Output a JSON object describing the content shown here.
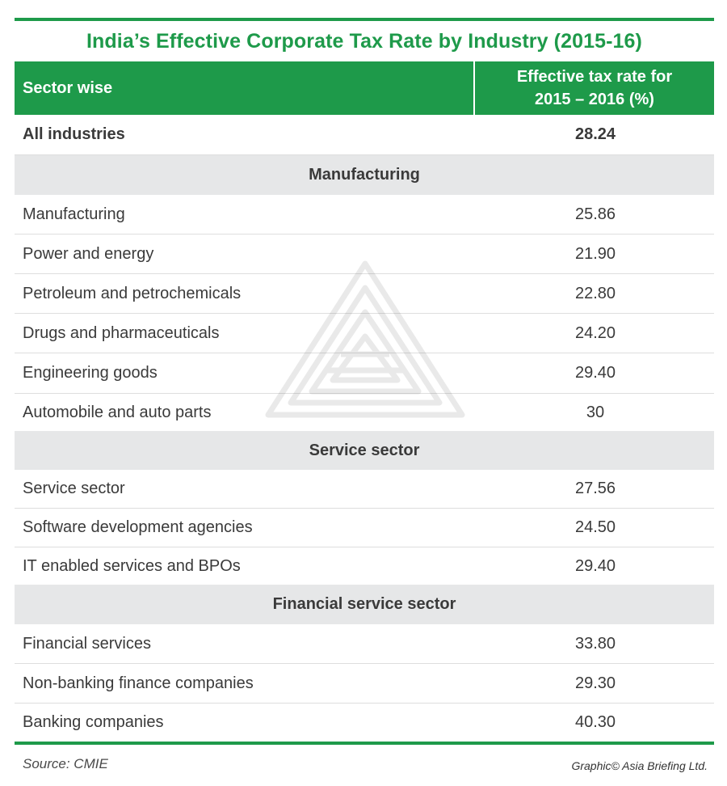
{
  "title": "India’s Effective Corporate Tax Rate by Industry (2015-16)",
  "header": {
    "sector_label": "Sector wise",
    "rate_label_line1": "Effective tax rate for",
    "rate_label_line2": "2015 – 2016 (%)"
  },
  "summary": {
    "label": "All industries",
    "value": "28.24"
  },
  "groups": {
    "manufacturing": {
      "label": "Manufacturing",
      "rows": [
        {
          "label": "Manufacturing",
          "value": "25.86"
        },
        {
          "label": "Power and energy",
          "value": "21.90"
        },
        {
          "label": "Petroleum and petrochemicals",
          "value": "22.80"
        },
        {
          "label": "Drugs and pharmaceuticals",
          "value": "24.20"
        },
        {
          "label": "Engineering goods",
          "value": "29.40"
        },
        {
          "label": "Automobile and auto parts",
          "value": "30"
        }
      ]
    },
    "service": {
      "label": "Service sector",
      "rows": [
        {
          "label": "Service sector",
          "value": "27.56"
        },
        {
          "label": "Software development agencies",
          "value": "24.50"
        },
        {
          "label": "IT enabled services and BPOs",
          "value": "29.40"
        }
      ]
    },
    "financial": {
      "label": "Financial service sector",
      "rows": [
        {
          "label": "Financial services",
          "value": "33.80"
        },
        {
          "label": "Non-banking finance companies",
          "value": "29.30"
        },
        {
          "label": "Banking companies",
          "value": "40.30"
        }
      ]
    }
  },
  "footer": {
    "source": "Source: CMIE",
    "credit": "Graphic© Asia Briefing Ltd."
  },
  "colors": {
    "accent": "#1e9a4a",
    "group_bg": "#e6e7e8",
    "text": "#3a3a3a"
  },
  "icons": {
    "watermark": "asia-briefing-logo-watermark"
  }
}
